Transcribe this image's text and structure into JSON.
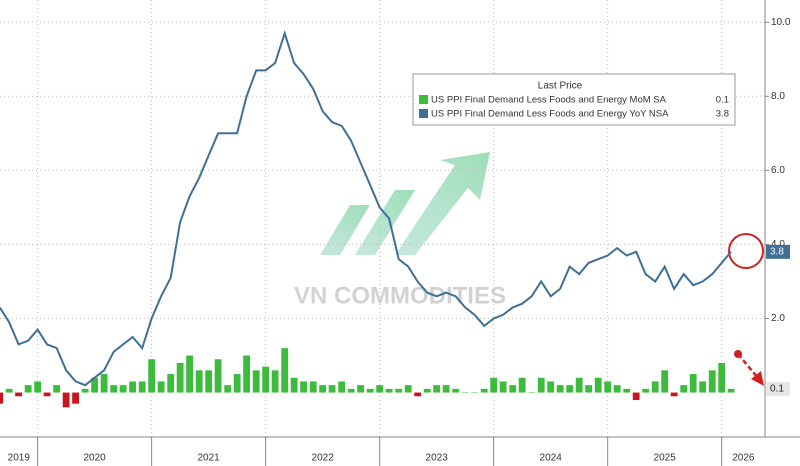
{
  "chart_data": {
    "type": "bar-line",
    "x": [
      2019.667,
      2019.75,
      2019.833,
      2019.917,
      2020.0,
      2020.083,
      2020.167,
      2020.25,
      2020.333,
      2020.417,
      2020.5,
      2020.583,
      2020.667,
      2020.75,
      2020.833,
      2020.917,
      2021.0,
      2021.083,
      2021.167,
      2021.25,
      2021.333,
      2021.417,
      2021.5,
      2021.583,
      2021.667,
      2021.75,
      2021.833,
      2021.917,
      2022.0,
      2022.083,
      2022.167,
      2022.25,
      2022.333,
      2022.417,
      2022.5,
      2022.583,
      2022.667,
      2022.75,
      2022.833,
      2022.917,
      2023.0,
      2023.083,
      2023.167,
      2023.25,
      2023.333,
      2023.417,
      2023.5,
      2023.583,
      2023.667,
      2023.75,
      2023.833,
      2023.917,
      2024.0,
      2024.083,
      2024.167,
      2024.25,
      2024.333,
      2024.417,
      2024.5,
      2024.583,
      2024.667,
      2024.75,
      2024.833,
      2024.917,
      2025.0,
      2025.083,
      2025.167,
      2025.25,
      2025.333,
      2025.417,
      2025.5,
      2025.583,
      2025.667,
      2025.75,
      2025.833,
      2025.917,
      2026.0,
      2026.083
    ],
    "series": [
      {
        "name": "US PPI Final Demand Less Foods and Energy MoM SA",
        "kind": "bar",
        "color": "#3cbb3c",
        "negative_color": "#c8161e",
        "values": [
          -0.3,
          0.1,
          -0.1,
          0.2,
          0.3,
          -0.1,
          0.2,
          -0.4,
          -0.3,
          0.1,
          0.4,
          0.5,
          0.2,
          0.2,
          0.3,
          0.3,
          0.9,
          0.3,
          0.5,
          0.8,
          1.0,
          0.6,
          0.6,
          0.9,
          0.2,
          0.5,
          1.0,
          0.6,
          0.7,
          0.6,
          1.2,
          0.4,
          0.3,
          0.3,
          0.2,
          0.2,
          0.3,
          0.1,
          0.2,
          0.1,
          0.2,
          0.1,
          0.1,
          0.2,
          -0.1,
          0.1,
          0.2,
          0.2,
          0.1,
          0.0,
          0.0,
          0.1,
          0.4,
          0.3,
          0.2,
          0.4,
          0.0,
          0.4,
          0.3,
          0.2,
          0.2,
          0.4,
          0.2,
          0.4,
          0.3,
          0.2,
          0.1,
          -0.2,
          0.1,
          0.3,
          0.6,
          -0.1,
          0.2,
          0.5,
          0.3,
          0.6,
          0.8,
          0.1
        ]
      },
      {
        "name": "US PPI Final Demand Less Foods and Energy YoY NSA",
        "kind": "line",
        "color": "#3f6f94",
        "values": [
          2.3,
          1.9,
          1.3,
          1.4,
          1.7,
          1.3,
          1.2,
          0.6,
          0.3,
          0.2,
          0.4,
          0.6,
          1.1,
          1.3,
          1.5,
          1.2,
          2.0,
          2.6,
          3.1,
          4.6,
          5.3,
          5.8,
          6.4,
          7.0,
          7.0,
          7.0,
          8.0,
          8.7,
          8.7,
          8.9,
          9.7,
          8.9,
          8.6,
          8.2,
          7.6,
          7.3,
          7.2,
          6.8,
          6.2,
          5.6,
          5.0,
          4.7,
          3.6,
          3.4,
          3.0,
          2.7,
          2.6,
          2.7,
          2.6,
          2.3,
          2.1,
          1.8,
          2.0,
          2.1,
          2.3,
          2.4,
          2.6,
          3.0,
          2.6,
          2.8,
          3.4,
          3.2,
          3.5,
          3.6,
          3.7,
          3.9,
          3.7,
          3.8,
          3.2,
          3.0,
          3.4,
          2.8,
          3.2,
          2.9,
          3.0,
          3.2,
          3.5,
          3.8
        ]
      }
    ],
    "legend_title": "Last Price",
    "xlim": [
      2019.67,
      2026.38
    ],
    "xticks": [
      2019,
      2020,
      2021,
      2022,
      2023,
      2024,
      2025,
      2026
    ],
    "ylim": [
      -1.2,
      10.6
    ],
    "yticks": [
      {
        "value": 2,
        "label": "2.0"
      },
      {
        "value": 4,
        "label": "4.0"
      },
      {
        "value": 6,
        "label": "6.0"
      },
      {
        "value": 8,
        "label": "8.0"
      },
      {
        "value": 10,
        "label": "10.0"
      }
    ],
    "grid": true,
    "watermark": "VN COMMODITIES"
  }
}
